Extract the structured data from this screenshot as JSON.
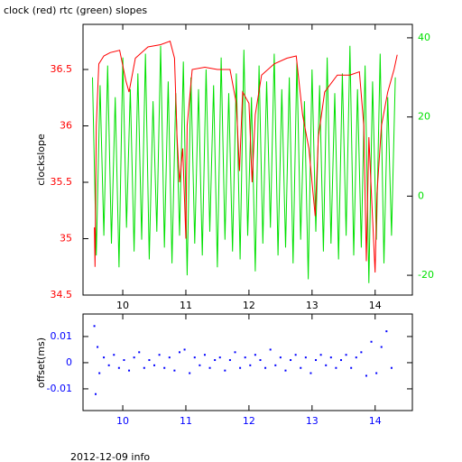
{
  "chart_data": [
    {
      "type": "line",
      "title": "clock (red) rtc (green) slopes",
      "y_label": "clockslope",
      "xlim": [
        9.37,
        14.59
      ],
      "ylim": [
        34.5,
        36.9
      ],
      "y2lim": [
        -25,
        43.4
      ],
      "xticks": [
        10,
        11,
        12,
        13,
        14
      ],
      "yticks": [
        34.5,
        35,
        35.5,
        36,
        36.5
      ],
      "y2ticks": [
        -20,
        0,
        20,
        40
      ],
      "series": [
        {
          "color": "#00e000",
          "axis": "y2",
          "x": [
            9.52,
            9.58,
            9.64,
            9.7,
            9.76,
            9.82,
            9.88,
            9.94,
            10.0,
            10.06,
            10.12,
            10.18,
            10.24,
            10.3,
            10.36,
            10.42,
            10.48,
            10.54,
            10.6,
            10.66,
            10.72,
            10.78,
            10.84,
            10.9,
            10.96,
            11.02,
            11.08,
            11.14,
            11.2,
            11.26,
            11.32,
            11.38,
            11.44,
            11.5,
            11.56,
            11.62,
            11.68,
            11.74,
            11.8,
            11.86,
            11.92,
            11.98,
            12.04,
            12.1,
            12.16,
            12.22,
            12.28,
            12.34,
            12.4,
            12.46,
            12.52,
            12.58,
            12.64,
            12.7,
            12.76,
            12.82,
            12.88,
            12.94,
            13.0,
            13.06,
            13.12,
            13.18,
            13.24,
            13.3,
            13.36,
            13.42,
            13.48,
            13.54,
            13.6,
            13.66,
            13.72,
            13.78,
            13.84,
            13.9,
            13.96,
            14.02,
            14.08,
            14.14,
            14.2,
            14.26,
            14.32
          ],
          "values": [
            30,
            -15,
            28,
            -10,
            33,
            -12,
            25,
            -18,
            35,
            -8,
            27,
            -14,
            31,
            -11,
            36,
            -16,
            24,
            -9,
            38,
            -13,
            29,
            -17,
            26,
            -10,
            34,
            -20,
            30,
            -12,
            27,
            -15,
            32,
            -9,
            28,
            -18,
            35,
            -11,
            26,
            -14,
            31,
            -16,
            37,
            -10,
            25,
            -19,
            33,
            -12,
            29,
            -8,
            36,
            -15,
            27,
            -13,
            30,
            -17,
            34,
            -11,
            24,
            -21,
            32,
            -9,
            28,
            -14,
            35,
            -12,
            26,
            -16,
            31,
            -10,
            38,
            -15,
            27,
            -13,
            33,
            -22,
            29,
            -11,
            36,
            -17,
            25,
            -10,
            30
          ]
        },
        {
          "color": "#ff0000",
          "x": [
            9.55,
            9.56,
            9.58,
            9.62,
            9.7,
            9.8,
            9.95,
            10.05,
            10.1,
            10.2,
            10.4,
            10.6,
            10.75,
            10.82,
            10.86,
            10.9,
            10.95,
            11.0,
            11.02,
            11.1,
            11.3,
            11.5,
            11.7,
            11.8,
            11.85,
            11.9,
            12.0,
            12.05,
            12.1,
            12.2,
            12.4,
            12.6,
            12.75,
            12.85,
            12.95,
            13.05,
            13.1,
            13.2,
            13.4,
            13.6,
            13.75,
            13.82,
            13.86,
            13.9,
            13.95,
            14.0,
            14.03,
            14.1,
            14.2,
            14.3,
            14.35
          ],
          "values": [
            35.1,
            34.75,
            36.0,
            36.55,
            36.62,
            36.65,
            36.67,
            36.4,
            36.3,
            36.6,
            36.7,
            36.72,
            36.75,
            36.6,
            35.9,
            35.5,
            35.8,
            35.0,
            36.0,
            36.5,
            36.52,
            36.5,
            36.5,
            36.2,
            35.6,
            36.3,
            36.2,
            35.5,
            36.1,
            36.45,
            36.55,
            36.6,
            36.62,
            36.1,
            35.8,
            35.2,
            35.9,
            36.3,
            36.45,
            36.45,
            36.48,
            36.0,
            34.8,
            35.9,
            35.3,
            34.7,
            35.4,
            36.0,
            36.3,
            36.5,
            36.63
          ]
        }
      ]
    },
    {
      "type": "scatter",
      "y_label": "offset(ms)",
      "xlim": [
        9.37,
        14.59
      ],
      "ylim": [
        -0.0183,
        0.0186
      ],
      "xticks": [
        10,
        11,
        12,
        13,
        14
      ],
      "yticks": [
        -0.01,
        0,
        0.01
      ],
      "color": "#0000ff",
      "x": [
        9.55,
        9.57,
        9.6,
        9.63,
        9.7,
        9.78,
        9.86,
        9.94,
        10.02,
        10.1,
        10.18,
        10.26,
        10.34,
        10.42,
        10.5,
        10.58,
        10.66,
        10.74,
        10.82,
        10.9,
        10.98,
        11.06,
        11.14,
        11.22,
        11.3,
        11.38,
        11.46,
        11.54,
        11.62,
        11.7,
        11.78,
        11.86,
        11.94,
        12.02,
        12.1,
        12.18,
        12.26,
        12.34,
        12.42,
        12.5,
        12.58,
        12.66,
        12.74,
        12.82,
        12.9,
        12.98,
        13.06,
        13.14,
        13.22,
        13.3,
        13.38,
        13.46,
        13.54,
        13.62,
        13.7,
        13.78,
        13.86,
        13.94,
        14.02,
        14.1,
        14.18,
        14.26
      ],
      "values": [
        0.014,
        -0.012,
        0.006,
        -0.004,
        0.002,
        -0.001,
        0.003,
        -0.002,
        0.001,
        -0.003,
        0.002,
        0.004,
        -0.002,
        0.001,
        -0.001,
        0.003,
        -0.002,
        0.002,
        -0.003,
        0.004,
        0.005,
        -0.004,
        0.002,
        -0.001,
        0.003,
        -0.002,
        0.001,
        0.002,
        -0.003,
        0.001,
        0.004,
        -0.002,
        0.002,
        -0.001,
        0.003,
        0.001,
        -0.002,
        0.005,
        -0.001,
        0.002,
        -0.003,
        0.001,
        0.003,
        -0.002,
        0.002,
        -0.004,
        0.001,
        0.003,
        -0.001,
        0.002,
        -0.002,
        0.001,
        0.003,
        -0.002,
        0.002,
        0.004,
        -0.005,
        0.008,
        -0.004,
        0.006,
        0.012,
        -0.002
      ]
    }
  ],
  "footer": "2012-12-09 info"
}
